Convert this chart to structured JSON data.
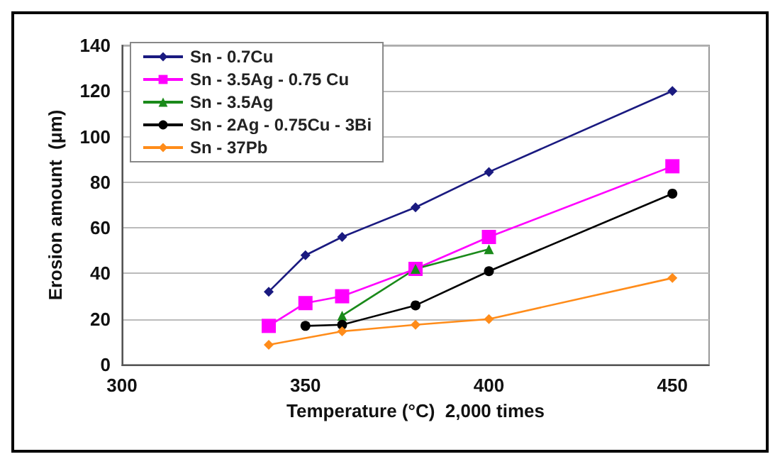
{
  "chart_data": {
    "type": "line",
    "xlabel": "Temperature (°C)  2,000 times",
    "ylabel": "Erosion amount  (μm)",
    "xlim": [
      300,
      460
    ],
    "xticks": [
      300,
      350,
      400,
      450
    ],
    "ylim": [
      0,
      140
    ],
    "yticks": [
      0,
      20,
      40,
      60,
      80,
      100,
      120,
      140
    ],
    "grid": "y",
    "legend": "top left",
    "series": [
      {
        "name": "Sn - 0.7Cu",
        "color": "#1a1a80",
        "marker": "diamond",
        "x": [
          340,
          350,
          360,
          380,
          400,
          450
        ],
        "values": [
          32,
          48,
          56,
          69,
          84.5,
          120
        ]
      },
      {
        "name": "Sn - 3.5Ag - 0.75 Cu",
        "color": "#ff00ff",
        "marker": "square",
        "x": [
          340,
          350,
          360,
          380,
          400,
          450
        ],
        "values": [
          17,
          27,
          30,
          42,
          56,
          87
        ]
      },
      {
        "name": "Sn - 3.5Ag",
        "color": "#1a8a1a",
        "marker": "triangle",
        "x": [
          360,
          380,
          400
        ],
        "values": [
          21.5,
          42,
          50.6
        ]
      },
      {
        "name": "Sn - 2Ag - 0.75Cu - 3Bi",
        "color": "#000000",
        "marker": "circle",
        "x": [
          350,
          360,
          380,
          400,
          450
        ],
        "values": [
          17,
          17.5,
          26,
          41,
          75
        ]
      },
      {
        "name": "Sn - 37Pb",
        "color": "#ff8c1a",
        "marker": "diamond",
        "x": [
          340,
          360,
          380,
          400,
          450
        ],
        "values": [
          8.7,
          14.6,
          17.5,
          20,
          38
        ]
      }
    ]
  }
}
